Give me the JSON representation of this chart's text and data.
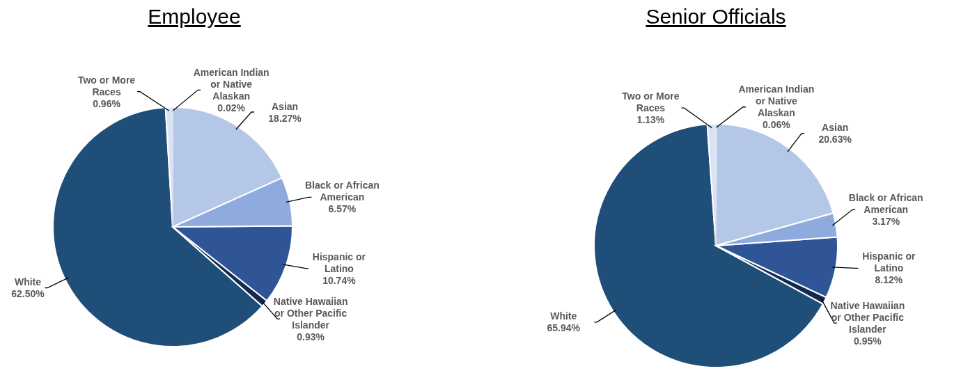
{
  "chart_data": [
    {
      "type": "pie",
      "title": "Employee",
      "categories": [
        "American Indian or Native Alaskan",
        "Asian",
        "Black or African American",
        "Hispanic or Latino",
        "Native Hawaiian or Other Pacific Islander",
        "White",
        "Two or More Races"
      ],
      "values": [
        0.02,
        18.27,
        6.57,
        10.74,
        0.93,
        62.5,
        0.96
      ],
      "value_labels": [
        "0.02%",
        "18.27%",
        "6.57%",
        "10.74%",
        "0.93%",
        "62.50%",
        "0.96%"
      ],
      "colors": [
        "#c9d6ee",
        "#b4c7e7",
        "#8faadc",
        "#2f5597",
        "#13294f",
        "#1f4e79",
        "#dae3f3"
      ]
    },
    {
      "type": "pie",
      "title": "Senior Officials",
      "categories": [
        "American Indian or Native Alaskan",
        "Asian",
        "Black or African American",
        "Hispanic or Latino",
        "Native Hawaiian or Other Pacific Islander",
        "White",
        "Two or More Races"
      ],
      "values": [
        0.06,
        20.63,
        3.17,
        8.12,
        0.95,
        65.94,
        1.13
      ],
      "value_labels": [
        "0.06%",
        "20.63%",
        "3.17%",
        "8.12%",
        "0.95%",
        "65.94%",
        "1.13%"
      ],
      "colors": [
        "#c9d6ee",
        "#b4c7e7",
        "#8faadc",
        "#2f5597",
        "#13294f",
        "#1f4e79",
        "#dae3f3"
      ]
    }
  ]
}
